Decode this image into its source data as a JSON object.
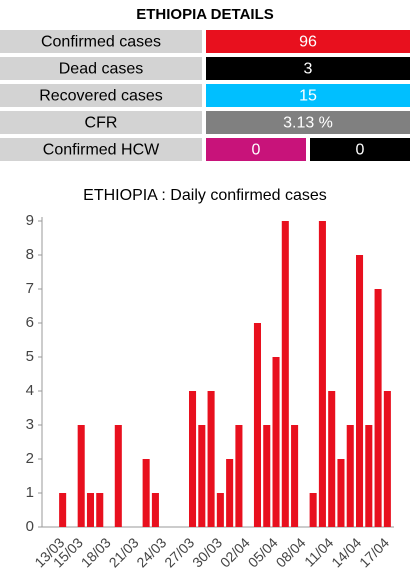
{
  "details": {
    "title": "ETHIOPIA DETAILS",
    "rows": [
      {
        "label": "Confirmed cases",
        "values": [
          96
        ],
        "colors": [
          "#e8101e"
        ]
      },
      {
        "label": "Dead cases",
        "values": [
          3
        ],
        "colors": [
          "#000000"
        ]
      },
      {
        "label": "Recovered cases",
        "values": [
          15
        ],
        "colors": [
          "#00bfff"
        ]
      },
      {
        "label": "CFR",
        "values": [
          "3.13 %"
        ],
        "colors": [
          "#808080"
        ]
      },
      {
        "label": "Confirmed HCW",
        "values": [
          0,
          0
        ],
        "colors": [
          "#c8137a",
          "#000000"
        ]
      }
    ]
  },
  "chart_data": {
    "type": "bar",
    "title": "ETHIOPIA : Daily confirmed cases",
    "categories": [
      "13/03",
      null,
      "15/03",
      null,
      null,
      "18/03",
      null,
      null,
      "21/03",
      null,
      null,
      "24/03",
      null,
      null,
      "27/03",
      null,
      null,
      "30/03",
      null,
      null,
      "02/04",
      null,
      null,
      "05/04",
      null,
      null,
      "08/04",
      null,
      null,
      "11/04",
      null,
      null,
      "14/04",
      null,
      null,
      "17/04"
    ],
    "values": [
      1,
      0,
      3,
      1,
      1,
      0,
      3,
      0,
      0,
      2,
      1,
      0,
      0,
      0,
      4,
      3,
      4,
      1,
      2,
      3,
      0,
      6,
      3,
      5,
      9,
      3,
      0,
      1,
      9,
      4,
      2,
      3,
      8,
      3,
      7,
      4
    ],
    "color": "#e8101e",
    "ylim": [
      0,
      9
    ],
    "yticks": [
      0,
      1,
      2,
      3,
      4,
      5,
      6,
      7,
      8,
      9
    ],
    "grid": false
  }
}
